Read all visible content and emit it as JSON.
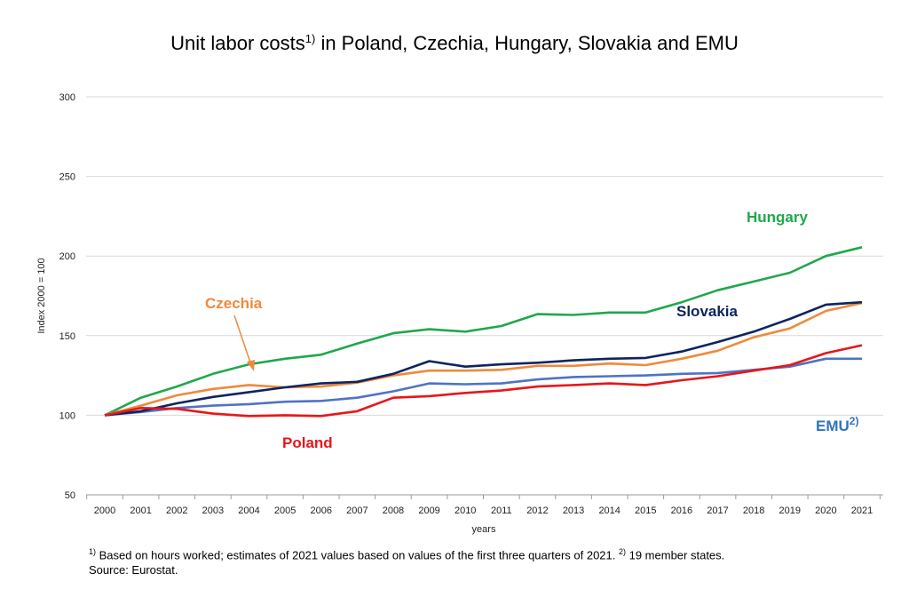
{
  "chart_data": {
    "type": "line",
    "title": "Unit labor costs",
    "title_sup": "1)",
    "title_rest": " in Poland, Czechia, Hungary, Slovakia and EMU",
    "xlabel": "years",
    "ylabel": "Index 2000 = 100",
    "ylim": [
      50,
      300
    ],
    "yticks": [
      50,
      100,
      150,
      200,
      250,
      300
    ],
    "grid": true,
    "x": [
      "2000",
      "2001",
      "2002",
      "2003",
      "2004",
      "2005",
      "2006",
      "2007",
      "2008",
      "2009",
      "2010",
      "2011",
      "2012",
      "2013",
      "2014",
      "2015",
      "2016",
      "2017",
      "2018",
      "2019",
      "2020",
      "2021"
    ],
    "series": [
      {
        "name": "Hungary",
        "color": "#1fa84a",
        "values": [
          100,
          111,
          118,
          126,
          132,
          135.5,
          138,
          145,
          151.5,
          154,
          152.5,
          156,
          163.5,
          163,
          164.5,
          164.5,
          171,
          178.5,
          184,
          189.5,
          200,
          205.5
        ]
      },
      {
        "name": "Slovakia",
        "color": "#0d2460",
        "values": [
          100,
          102.5,
          107.5,
          111.5,
          114.5,
          117.5,
          120,
          121,
          126,
          134,
          130.5,
          132,
          133,
          134.5,
          135.5,
          136,
          140,
          146,
          152.5,
          160.5,
          169.5,
          171
        ]
      },
      {
        "name": "Czechia",
        "color": "#ee8a3c",
        "values": [
          100,
          106,
          112.5,
          116.5,
          119,
          117.5,
          118,
          120.5,
          125,
          128,
          128,
          128.5,
          131,
          131,
          132.5,
          131.5,
          135.5,
          140.5,
          149,
          154.5,
          165.5,
          170.5
        ]
      },
      {
        "name": "EMU",
        "name_sup": "2)",
        "color": "#4f73c4",
        "values": [
          100,
          102,
          104.5,
          106,
          107,
          108.5,
          109,
          111,
          115,
          120,
          119.5,
          120,
          122.5,
          124,
          124.5,
          125,
          126,
          126.5,
          128.5,
          130.5,
          135.5,
          135.5
        ]
      },
      {
        "name": "Poland",
        "color": "#e8161a",
        "values": [
          100,
          104.5,
          104,
          101,
          99.5,
          100,
          99.5,
          102.5,
          111,
          112,
          114,
          115.5,
          118,
          119,
          120,
          119,
          122,
          124.5,
          128,
          131.5,
          139,
          144
        ]
      }
    ]
  },
  "footnotes": {
    "line1_sup1": "1)",
    "line1_text1": " Based on hours worked; estimates of 2021 values based on values of the first three quarters of 2021. ",
    "line1_sup2": "2)",
    "line1_text2": " 19 member states.",
    "line2": "Source: Eurostat."
  }
}
